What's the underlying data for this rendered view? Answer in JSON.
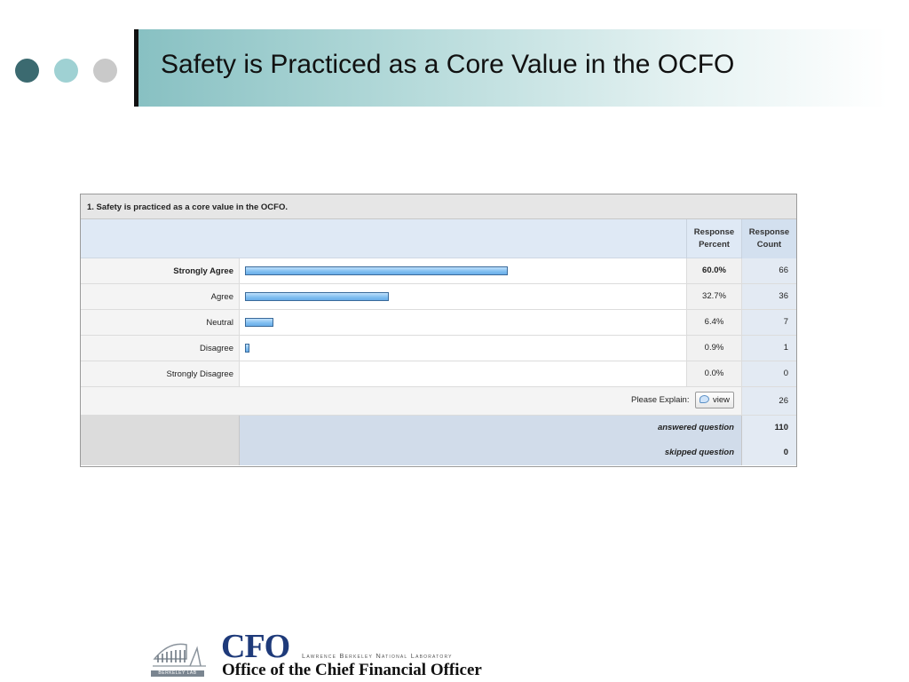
{
  "slide": {
    "title": "Safety is Practiced as a Core Value in the OCFO"
  },
  "survey": {
    "question": "1. Safety is practiced as a core value in the OCFO.",
    "headers": {
      "percent": "Response Percent",
      "count": "Response Count"
    },
    "rows": [
      {
        "label": "Strongly Agree",
        "percent": "60.0%",
        "count": "66",
        "fraction": 0.6
      },
      {
        "label": "Agree",
        "percent": "32.7%",
        "count": "36",
        "fraction": 0.327
      },
      {
        "label": "Neutral",
        "percent": "6.4%",
        "count": "7",
        "fraction": 0.064
      },
      {
        "label": "Disagree",
        "percent": "0.9%",
        "count": "1",
        "fraction": 0.009
      },
      {
        "label": "Strongly Disagree",
        "percent": "0.0%",
        "count": "0",
        "fraction": 0.0
      }
    ],
    "explain": {
      "label": "Please Explain:",
      "button": "view",
      "count": "26"
    },
    "answered": {
      "label": "answered question",
      "count": "110"
    },
    "skipped": {
      "label": "skipped question",
      "count": "0"
    }
  },
  "footer": {
    "cfo": "CFO",
    "lab": "Lawrence Berkeley National Laboratory",
    "office": "Office of the Chief Financial Officer",
    "berkeley": "BERKELEY LAB"
  },
  "colors": {
    "accent_dark": "#3b6a70",
    "accent_light": "#9fd1d3",
    "bar": "#7fbef0",
    "logo_blue": "#1e3a7a"
  }
}
